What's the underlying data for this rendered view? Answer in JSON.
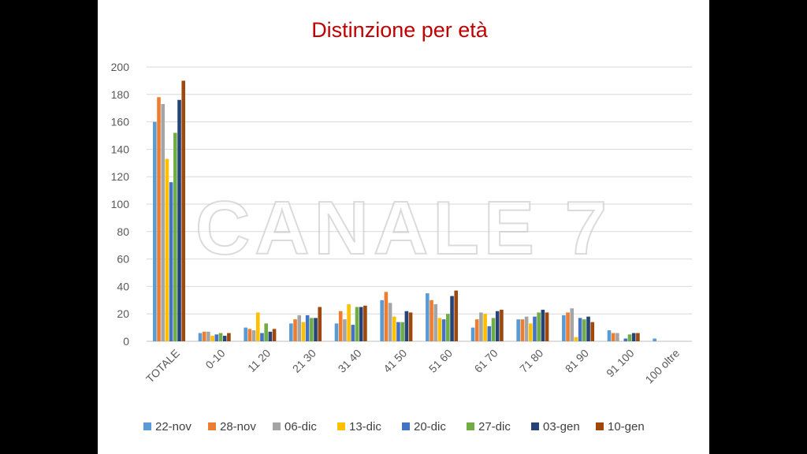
{
  "watermark": "CANALE 7",
  "chart_data": {
    "type": "bar",
    "title": "Distinzione per età",
    "xlabel": "",
    "ylabel": "",
    "ylim": [
      0,
      200
    ],
    "yticks": [
      0,
      20,
      40,
      60,
      80,
      100,
      120,
      140,
      160,
      180,
      200
    ],
    "grid": true,
    "legend_position": "bottom",
    "categories": [
      "TOTALE",
      "0-10",
      "11 20",
      "21 30",
      "31 40",
      "41 50",
      "51 60",
      "61 70",
      "71 80",
      "81 90",
      "91 100",
      "100 oltre"
    ],
    "series": [
      {
        "name": "22-nov",
        "color": "#5b9bd5",
        "values": [
          160,
          6,
          10,
          13,
          13,
          30,
          35,
          10,
          16,
          19,
          8,
          2
        ]
      },
      {
        "name": "28-nov",
        "color": "#ed7d31",
        "values": [
          178,
          7,
          9,
          16,
          22,
          36,
          30,
          16,
          16,
          21,
          6,
          0
        ]
      },
      {
        "name": "06-dic",
        "color": "#a5a5a5",
        "values": [
          173,
          7,
          8,
          19,
          16,
          28,
          27,
          21,
          18,
          24,
          6,
          0
        ]
      },
      {
        "name": "13-dic",
        "color": "#ffc000",
        "values": [
          133,
          4,
          21,
          14,
          27,
          18,
          17,
          20,
          13,
          3,
          0,
          0
        ]
      },
      {
        "name": "20-dic",
        "color": "#4472c4",
        "values": [
          116,
          5,
          6,
          19,
          12,
          14,
          16,
          11,
          18,
          17,
          2,
          0
        ]
      },
      {
        "name": "27-dic",
        "color": "#70ad47",
        "values": [
          152,
          6,
          13,
          17,
          25,
          14,
          20,
          17,
          21,
          16,
          5,
          0
        ]
      },
      {
        "name": "03-gen",
        "color": "#264478",
        "values": [
          176,
          4,
          7,
          17,
          25,
          22,
          33,
          22,
          23,
          18,
          6,
          0
        ]
      },
      {
        "name": "10-gen",
        "color": "#9e480e",
        "values": [
          190,
          6,
          9,
          25,
          26,
          21,
          37,
          23,
          21,
          14,
          6,
          0
        ]
      }
    ]
  }
}
